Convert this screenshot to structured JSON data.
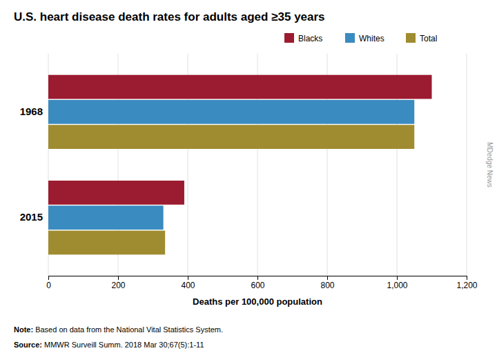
{
  "chart_data": {
    "type": "bar",
    "orientation": "horizontal",
    "title": "U.S. heart disease death rates for adults aged ≥35 years",
    "xlabel": "Deaths per 100,000 population",
    "categories": [
      "1968",
      "2015"
    ],
    "series": [
      {
        "name": "Blacks",
        "color": "#9b1b30",
        "values": [
          1100,
          390
        ]
      },
      {
        "name": "Whites",
        "color": "#3a8bbf",
        "values": [
          1050,
          330
        ]
      },
      {
        "name": "Total",
        "color": "#a08c30",
        "values": [
          1050,
          335
        ]
      }
    ],
    "xlim": [
      0,
      1200
    ],
    "xticks": [
      0,
      200,
      400,
      600,
      800,
      {
        "value": 1000,
        "label": "1,000"
      },
      {
        "value": 1200,
        "label": "1,200"
      }
    ],
    "grid": true,
    "legend": "top",
    "annotations": [
      "Note: Based on data from the National Vital Statistics System.",
      "Source: MMWR Surveill Summ. 2018 Mar 30;67(5):1-11"
    ],
    "watermark": "MDedge News"
  }
}
